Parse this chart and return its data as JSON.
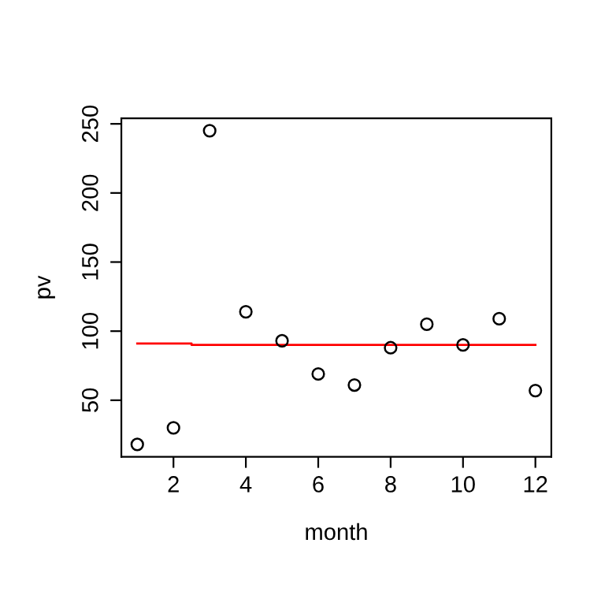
{
  "chart_data": {
    "type": "scatter",
    "xlabel": "month",
    "ylabel": "pv",
    "grid": false,
    "legend": false,
    "xlim": [
      0.56,
      12.44
    ],
    "ylim": [
      9,
      254
    ],
    "xticks": [
      2,
      4,
      6,
      8,
      10,
      12
    ],
    "yticks": [
      50,
      100,
      150,
      200,
      250
    ],
    "series": [
      {
        "color": "#000000",
        "marker": "circle",
        "x": [
          1,
          2,
          3,
          4,
          5,
          6,
          7,
          8,
          9,
          10,
          11,
          12
        ],
        "values": [
          18,
          30,
          245,
          114,
          93,
          69,
          61,
          88,
          105,
          90,
          109,
          57
        ]
      },
      {
        "type": "line",
        "marker": "none",
        "color": "#ff0000",
        "x": [
          1,
          2.5,
          2.5,
          12
        ],
        "values": [
          91,
          91,
          90,
          90
        ]
      }
    ]
  }
}
